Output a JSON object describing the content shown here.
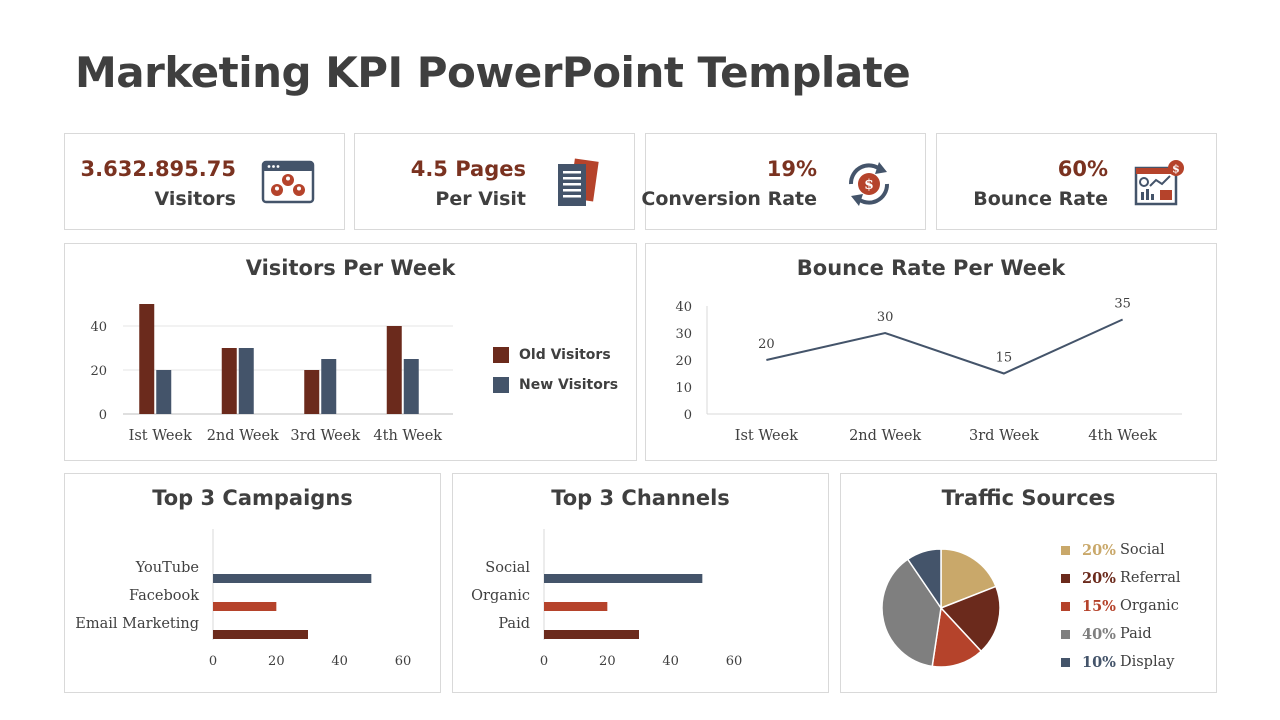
{
  "title": "Marketing KPI PowerPoint Template",
  "colors": {
    "dark_red": "#6b2a1c",
    "navy": "#44546a",
    "rust": "#b5432b",
    "tan": "#c9a86a",
    "gray": "#7f7f7f",
    "value_text": "#7a3220"
  },
  "kpis": [
    {
      "value": "3.632.895.75",
      "label": "Visitors",
      "icon": "visitors-browser-icon"
    },
    {
      "value": "4.5 Pages",
      "label": "Per Visit",
      "icon": "pages-document-icon"
    },
    {
      "value": "19%",
      "label": "Conversion Rate",
      "icon": "conversion-dollar-cycle-icon"
    },
    {
      "value": "60%",
      "label": "Bounce Rate",
      "icon": "bounce-dashboard-icon"
    }
  ],
  "chart_data": [
    {
      "type": "bar",
      "title": "Visitors Per Week",
      "categories": [
        "Ist Week",
        "2nd Week",
        "3rd Week",
        "4th Week"
      ],
      "series": [
        {
          "name": "Old Visitors",
          "values": [
            50,
            30,
            20,
            40
          ],
          "color": "#6b2a1c"
        },
        {
          "name": "New Visitors",
          "values": [
            20,
            30,
            25,
            25
          ],
          "color": "#44546a"
        }
      ],
      "yticks": [
        0,
        20,
        40
      ],
      "ylim": [
        0,
        50
      ],
      "grid": true,
      "legend": "right"
    },
    {
      "type": "line",
      "title": "Bounce Rate Per Week",
      "categories": [
        "Ist Week",
        "2nd Week",
        "3rd Week",
        "4th Week"
      ],
      "values": [
        20,
        30,
        15,
        35
      ],
      "data_labels": [
        "20",
        "30",
        "15",
        "35"
      ],
      "yticks": [
        0,
        10,
        20,
        30,
        40
      ],
      "ylim": [
        0,
        40
      ],
      "color": "#44546a"
    },
    {
      "type": "bar",
      "orientation": "horizontal",
      "title": "Top 3 Campaigns",
      "categories": [
        "YouTube",
        "Facebook",
        "Email Marketing"
      ],
      "values": [
        50,
        20,
        30
      ],
      "colors": [
        "#44546a",
        "#b5432b",
        "#6b2a1c"
      ],
      "xticks": [
        0,
        20,
        40,
        60
      ],
      "xlim": [
        0,
        60
      ]
    },
    {
      "type": "bar",
      "orientation": "horizontal",
      "title": "Top 3 Channels",
      "categories": [
        "Social",
        "Organic",
        "Paid"
      ],
      "values": [
        50,
        20,
        30
      ],
      "colors": [
        "#44546a",
        "#b5432b",
        "#6b2a1c"
      ],
      "xticks": [
        0,
        20,
        40,
        60
      ],
      "xlim": [
        0,
        60
      ]
    },
    {
      "type": "pie",
      "title": "Traffic Sources",
      "slices": [
        {
          "label": "Social",
          "pct_label": "20%",
          "value": 20,
          "color": "#c9a86a"
        },
        {
          "label": "Referral",
          "pct_label": "20%",
          "value": 20,
          "color": "#6b2a1c"
        },
        {
          "label": "Organic",
          "pct_label": "15%",
          "value": 15,
          "color": "#b5432b"
        },
        {
          "label": "Paid",
          "pct_label": "40%",
          "value": 40,
          "color": "#7f7f7f"
        },
        {
          "label": "Display",
          "pct_label": "10%",
          "value": 10,
          "color": "#44546a"
        }
      ],
      "legend": "right"
    }
  ]
}
